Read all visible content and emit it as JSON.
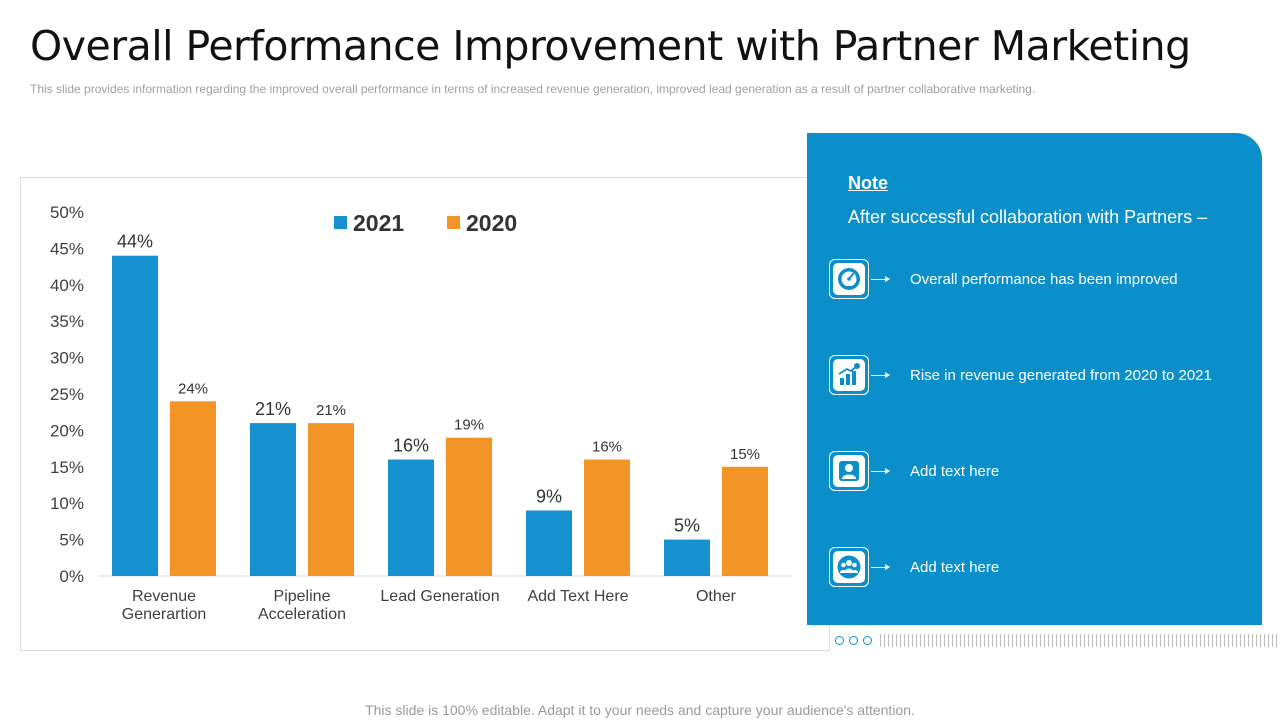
{
  "title": "Overall Performance Improvement with Partner Marketing",
  "subtitle": "This slide provides information regarding the improved overall performance in terms of increased revenue generation, improved lead generation as a result of partner collaborative marketing.",
  "footer": "This slide is 100% editable. Adapt it to your needs and capture your audience's attention.",
  "colors": {
    "series_2021": "#1591cf",
    "series_2020": "#f39426",
    "panel": "#0b8fcb"
  },
  "chart_data": {
    "type": "bar",
    "title": "",
    "xlabel": "",
    "ylabel": "",
    "ylim": [
      0,
      50
    ],
    "yticks": [
      "0%",
      "5%",
      "10%",
      "15%",
      "20%",
      "25%",
      "30%",
      "35%",
      "40%",
      "45%",
      "50%"
    ],
    "categories": [
      [
        "Revenue",
        "Generartion"
      ],
      [
        "Pipeline",
        "Acceleration"
      ],
      [
        "Lead Generation"
      ],
      [
        "Add Text Here"
      ],
      [
        "Other"
      ]
    ],
    "series": [
      {
        "name": "2021",
        "color": "#1591cf",
        "values": [
          44,
          21,
          16,
          9,
          5
        ],
        "labels": [
          "44%",
          "21%",
          "16%",
          "9%",
          "5%"
        ]
      },
      {
        "name": "2020",
        "color": "#f39426",
        "values": [
          24,
          21,
          19,
          16,
          15
        ],
        "labels": [
          "24%",
          "21%",
          "19%",
          "16%",
          "15%"
        ]
      }
    ],
    "legend": "top-center"
  },
  "note": {
    "title": "Note",
    "heading": "After successful collaboration with Partners –",
    "items": [
      {
        "icon": "speedometer-icon",
        "text": "Overall performance has been improved"
      },
      {
        "icon": "growth-chart-icon",
        "text": "Rise in revenue generated from 2020 to 2021"
      },
      {
        "icon": "user-icon",
        "text": "Add text here"
      },
      {
        "icon": "team-icon",
        "text": "Add text here"
      }
    ]
  }
}
